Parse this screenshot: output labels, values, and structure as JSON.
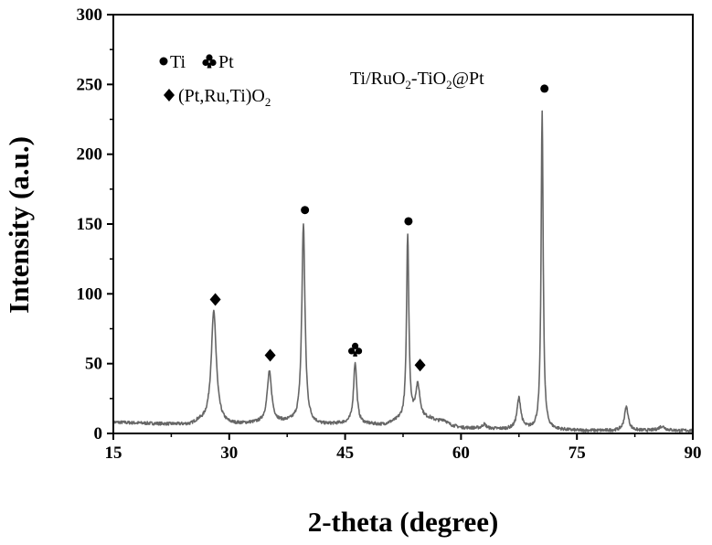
{
  "chart_data": {
    "type": "line",
    "title": "",
    "xlabel": "2-theta (degree)",
    "ylabel": "Intensity (a.u.)",
    "xlim": [
      15,
      90
    ],
    "ylim": [
      0,
      300
    ],
    "x_ticks": [
      15,
      30,
      45,
      60,
      75,
      90
    ],
    "y_ticks": [
      0,
      50,
      100,
      150,
      200,
      250,
      300
    ],
    "grid": false,
    "line_color": "#666666",
    "baseline": [
      [
        15,
        8
      ],
      [
        20,
        7
      ],
      [
        25,
        6
      ],
      [
        26,
        8
      ],
      [
        30,
        6
      ],
      [
        33,
        7
      ],
      [
        38,
        8
      ],
      [
        42,
        6
      ],
      [
        45,
        7
      ],
      [
        50,
        6
      ],
      [
        52,
        9
      ],
      [
        56,
        10
      ],
      [
        58,
        6
      ],
      [
        60,
        4
      ],
      [
        65,
        3
      ],
      [
        70,
        3
      ],
      [
        75,
        2
      ],
      [
        80,
        2
      ],
      [
        85,
        2
      ],
      [
        90,
        2
      ]
    ],
    "peaks": [
      {
        "center": 28.0,
        "height": 80,
        "width": 0.4
      },
      {
        "center": 35.2,
        "height": 36,
        "width": 0.35
      },
      {
        "center": 39.6,
        "height": 142,
        "width": 0.25
      },
      {
        "center": 46.3,
        "height": 44,
        "width": 0.25
      },
      {
        "center": 53.1,
        "height": 132,
        "width": 0.18
      },
      {
        "center": 54.4,
        "height": 24,
        "width": 0.35
      },
      {
        "center": 57.8,
        "height": 3,
        "width": 0.5
      },
      {
        "center": 63.0,
        "height": 3,
        "width": 0.3
      },
      {
        "center": 67.5,
        "height": 22,
        "width": 0.3
      },
      {
        "center": 70.5,
        "height": 227,
        "width": 0.16
      },
      {
        "center": 81.4,
        "height": 17,
        "width": 0.3
      },
      {
        "center": 86.0,
        "height": 3,
        "width": 0.5
      }
    ],
    "markers": [
      {
        "x": 28.2,
        "y": 96,
        "symbol": "diamond"
      },
      {
        "x": 35.3,
        "y": 56,
        "symbol": "diamond"
      },
      {
        "x": 39.8,
        "y": 160,
        "symbol": "circle"
      },
      {
        "x": 46.3,
        "y": 60,
        "symbol": "club"
      },
      {
        "x": 53.2,
        "y": 152,
        "symbol": "circle"
      },
      {
        "x": 54.7,
        "y": 49,
        "symbol": "diamond"
      },
      {
        "x": 70.8,
        "y": 247,
        "symbol": "circle"
      }
    ],
    "legend": {
      "placement": "top-left",
      "items": [
        {
          "symbol": "circle",
          "label": "Ti"
        },
        {
          "symbol": "club",
          "label": "Pt"
        },
        {
          "symbol": "diamond",
          "label": "(Pt,Ru,Ti)O2"
        }
      ]
    },
    "annotations": [
      {
        "text": "Ti/RuO2-TiO2@Pt",
        "position": "top-center"
      }
    ]
  }
}
